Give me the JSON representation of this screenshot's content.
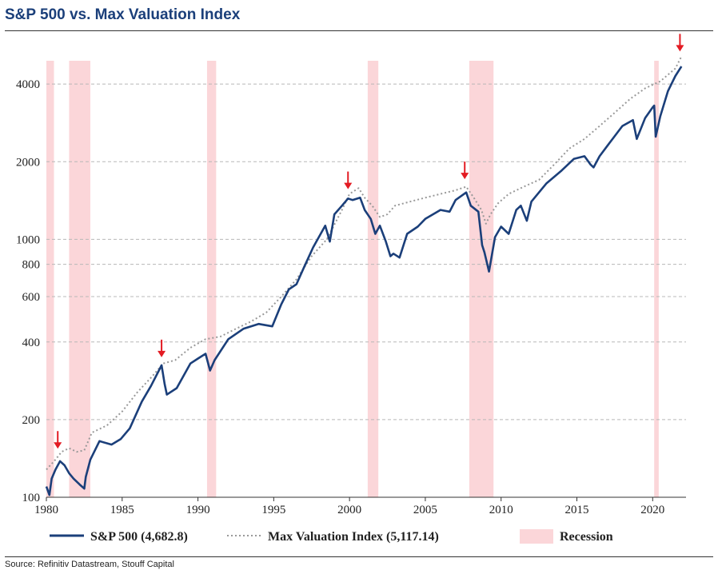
{
  "title": "S&P 500 vs. Max Valuation Index",
  "source": "Source: Refinitiv Datastream, Stouff Capital",
  "chart_data": {
    "type": "line",
    "title": "S&P 500 vs. Max Valuation Index",
    "xlabel": "",
    "ylabel": "",
    "y_scale": "log",
    "xlim": [
      1980,
      2022.2
    ],
    "ylim": [
      100,
      5600
    ],
    "x_ticks": [
      "1980",
      "1985",
      "1990",
      "1995",
      "2000",
      "2005",
      "2010",
      "2015",
      "2020"
    ],
    "x_tick_values": [
      1980,
      1985,
      1990,
      1995,
      2000,
      2005,
      2010,
      2015,
      2020
    ],
    "y_ticks": [
      "4000",
      "2000",
      "1000",
      "800",
      "600",
      "400",
      "200",
      "100"
    ],
    "y_tick_values": [
      4000,
      2000,
      1000,
      800,
      600,
      400,
      200,
      100
    ],
    "grid": "horizontal dashed",
    "legend_position": "bottom",
    "series": [
      {
        "name": "S&P 500 (4,682.8)",
        "color": "#1b3f7a",
        "style": "solid",
        "x": [
          1980,
          1980.2,
          1980.35,
          1980.6,
          1980.9,
          1981.2,
          1981.5,
          1981.8,
          1982.2,
          1982.5,
          1982.6,
          1982.9,
          1983.5,
          1984.3,
          1984.9,
          1985.5,
          1986.3,
          1986.9,
          1987.6,
          1987.8,
          1987.95,
          1988.6,
          1989.5,
          1990.0,
          1990.5,
          1990.8,
          1991.1,
          1992.0,
          1993.0,
          1994.0,
          1994.9,
          1995.5,
          1996.0,
          1996.5,
          1997.0,
          1997.6,
          1998.4,
          1998.7,
          1999.0,
          1999.5,
          1999.9,
          2000.2,
          2000.7,
          2001.0,
          2001.4,
          2001.7,
          2002.0,
          2002.4,
          2002.7,
          2002.9,
          2003.3,
          2003.8,
          2004.5,
          2005.0,
          2006.0,
          2006.6,
          2007.0,
          2007.7,
          2008.0,
          2008.5,
          2008.75,
          2008.9,
          2009.2,
          2009.6,
          2010.0,
          2010.5,
          2011.0,
          2011.3,
          2011.7,
          2012.0,
          2013.0,
          2014.0,
          2014.8,
          2015.5,
          2015.9,
          2016.1,
          2016.5,
          2017.0,
          2018.0,
          2018.7,
          2018.95,
          2019.5,
          2020.0,
          2020.1,
          2020.2,
          2020.5,
          2021.0,
          2021.5,
          2021.9
        ],
        "values": [
          110,
          102,
          118,
          128,
          138,
          133,
          124,
          118,
          112,
          108,
          120,
          140,
          165,
          160,
          168,
          185,
          235,
          270,
          325,
          275,
          250,
          265,
          330,
          345,
          360,
          310,
          340,
          410,
          450,
          470,
          460,
          560,
          640,
          670,
          780,
          930,
          1130,
          980,
          1250,
          1350,
          1440,
          1420,
          1450,
          1300,
          1200,
          1050,
          1130,
          980,
          860,
          880,
          850,
          1050,
          1120,
          1200,
          1300,
          1280,
          1420,
          1520,
          1350,
          1280,
          950,
          890,
          750,
          1020,
          1120,
          1050,
          1300,
          1350,
          1180,
          1400,
          1650,
          1850,
          2050,
          2100,
          1950,
          1900,
          2100,
          2300,
          2750,
          2900,
          2450,
          2950,
          3250,
          3300,
          2500,
          3000,
          3750,
          4300,
          4682.8
        ]
      },
      {
        "name": "Max Valuation Index (5,117.14)",
        "color": "#999999",
        "style": "dotted",
        "x": [
          1980,
          1980.6,
          1981.0,
          1981.5,
          1982.0,
          1982.5,
          1983.0,
          1984.0,
          1985.0,
          1986.0,
          1987.0,
          1987.7,
          1988.5,
          1989.5,
          1990.5,
          1991.5,
          1992.5,
          1993.5,
          1994.5,
          1995.5,
          1996.5,
          1997.5,
          1998.5,
          1999.5,
          2000.0,
          2000.6,
          2001.0,
          2001.5,
          2002.0,
          2002.5,
          2003.0,
          2004.0,
          2005.0,
          2006.0,
          2007.0,
          2007.7,
          2008.2,
          2008.7,
          2009.0,
          2009.3,
          2009.8,
          2010.5,
          2011.5,
          2012.5,
          2013.5,
          2014.5,
          2015.5,
          2016.5,
          2017.5,
          2018.5,
          2019.5,
          2020.5,
          2021.5,
          2021.9
        ],
        "values": [
          128,
          140,
          150,
          155,
          150,
          152,
          178,
          190,
          215,
          255,
          295,
          330,
          340,
          380,
          410,
          420,
          450,
          480,
          520,
          600,
          700,
          860,
          1000,
          1300,
          1500,
          1580,
          1450,
          1350,
          1220,
          1250,
          1350,
          1400,
          1450,
          1500,
          1550,
          1600,
          1450,
          1300,
          1150,
          1250,
          1380,
          1500,
          1600,
          1700,
          1950,
          2250,
          2450,
          2750,
          3100,
          3500,
          3850,
          4100,
          4600,
          5117.14
        ]
      }
    ],
    "recessions": [
      [
        1980.0,
        1980.5
      ],
      [
        1981.5,
        1982.9
      ],
      [
        1990.6,
        1991.2
      ],
      [
        2001.2,
        2001.9
      ],
      [
        2007.9,
        2009.5
      ],
      [
        2020.1,
        2020.4
      ]
    ],
    "arrows_at": [
      1980.75,
      1987.6,
      1999.9,
      2007.6,
      2021.8
    ],
    "legend": [
      {
        "label": "S&P 500 (4,682.8)",
        "style": "solid",
        "color": "#1b3f7a"
      },
      {
        "label": "Max Valuation Index (5,117.14)",
        "style": "dotted",
        "color": "#999999"
      },
      {
        "label": "Recession",
        "style": "band",
        "color": "#fbd6d9"
      }
    ]
  }
}
